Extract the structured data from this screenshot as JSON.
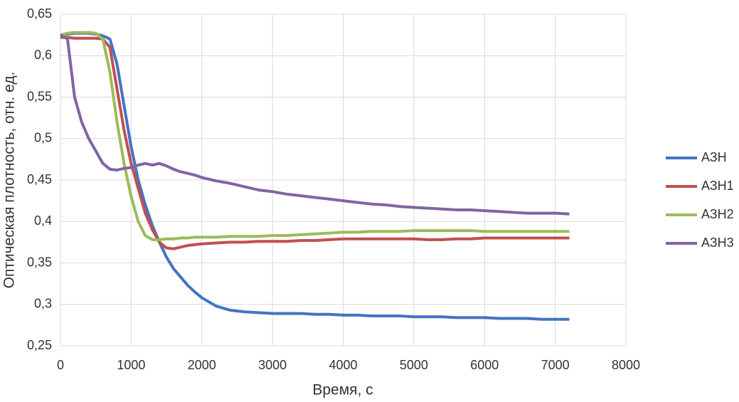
{
  "chart_data": {
    "type": "line",
    "x_label": "Время, с",
    "y_label": "Оптическая плотность, отн. ед.",
    "x": [
      0,
      100,
      200,
      300,
      400,
      500,
      600,
      700,
      800,
      900,
      1000,
      1100,
      1200,
      1300,
      1400,
      1500,
      1600,
      1700,
      1800,
      1900,
      2000,
      2200,
      2400,
      2600,
      2800,
      3000,
      3200,
      3400,
      3600,
      3800,
      4000,
      4200,
      4400,
      4600,
      4800,
      5000,
      5200,
      5400,
      5600,
      5800,
      6000,
      6200,
      6400,
      6600,
      6800,
      7000,
      7200
    ],
    "series": [
      {
        "name": "АЗН",
        "color": "#4472c4",
        "values": [
          0.625,
          0.626,
          0.627,
          0.627,
          0.627,
          0.626,
          0.624,
          0.62,
          0.59,
          0.54,
          0.49,
          0.45,
          0.42,
          0.395,
          0.375,
          0.357,
          0.343,
          0.333,
          0.323,
          0.315,
          0.308,
          0.298,
          0.293,
          0.291,
          0.29,
          0.289,
          0.289,
          0.289,
          0.288,
          0.288,
          0.287,
          0.287,
          0.286,
          0.286,
          0.286,
          0.285,
          0.285,
          0.285,
          0.284,
          0.284,
          0.284,
          0.283,
          0.283,
          0.283,
          0.282,
          0.282,
          0.282
        ]
      },
      {
        "name": "АЗН1",
        "color": "#c0504d",
        "values": [
          0.622,
          0.622,
          0.621,
          0.621,
          0.621,
          0.621,
          0.62,
          0.61,
          0.56,
          0.51,
          0.47,
          0.44,
          0.41,
          0.39,
          0.375,
          0.368,
          0.367,
          0.369,
          0.371,
          0.372,
          0.373,
          0.374,
          0.375,
          0.375,
          0.376,
          0.376,
          0.376,
          0.377,
          0.377,
          0.378,
          0.379,
          0.379,
          0.379,
          0.379,
          0.379,
          0.379,
          0.378,
          0.378,
          0.379,
          0.379,
          0.38,
          0.38,
          0.38,
          0.38,
          0.38,
          0.38,
          0.38
        ]
      },
      {
        "name": "АЗН2",
        "color": "#9bbb59",
        "values": [
          0.625,
          0.627,
          0.628,
          0.628,
          0.628,
          0.627,
          0.62,
          0.58,
          0.52,
          0.47,
          0.43,
          0.4,
          0.383,
          0.378,
          0.378,
          0.379,
          0.379,
          0.38,
          0.38,
          0.381,
          0.381,
          0.381,
          0.382,
          0.382,
          0.382,
          0.383,
          0.383,
          0.384,
          0.385,
          0.386,
          0.387,
          0.387,
          0.388,
          0.388,
          0.388,
          0.389,
          0.389,
          0.389,
          0.389,
          0.389,
          0.388,
          0.388,
          0.388,
          0.388,
          0.388,
          0.388,
          0.388
        ]
      },
      {
        "name": "АЗН3",
        "color": "#8064a2",
        "values": [
          0.625,
          0.62,
          0.55,
          0.52,
          0.5,
          0.485,
          0.47,
          0.463,
          0.462,
          0.464,
          0.465,
          0.468,
          0.47,
          0.468,
          0.47,
          0.467,
          0.463,
          0.46,
          0.458,
          0.456,
          0.453,
          0.449,
          0.446,
          0.442,
          0.438,
          0.436,
          0.433,
          0.431,
          0.429,
          0.427,
          0.425,
          0.423,
          0.421,
          0.42,
          0.418,
          0.417,
          0.416,
          0.415,
          0.414,
          0.414,
          0.413,
          0.412,
          0.411,
          0.41,
          0.41,
          0.41,
          0.409
        ]
      }
    ],
    "xlim": [
      0,
      8000
    ],
    "xticks": [
      0,
      1000,
      2000,
      3000,
      4000,
      5000,
      6000,
      7000,
      8000
    ],
    "ylim": [
      0.25,
      0.65
    ],
    "yticks": [
      {
        "value": 0.25,
        "label": "0,25"
      },
      {
        "value": 0.3,
        "label": "0,3"
      },
      {
        "value": 0.35,
        "label": "0,35"
      },
      {
        "value": 0.4,
        "label": "0,4"
      },
      {
        "value": 0.45,
        "label": "0,45"
      },
      {
        "value": 0.5,
        "label": "0,5"
      },
      {
        "value": 0.55,
        "label": "0,55"
      },
      {
        "value": 0.6,
        "label": "0,6"
      },
      {
        "value": 0.65,
        "label": "0,65"
      }
    ],
    "grid": true,
    "legend": "right"
  }
}
